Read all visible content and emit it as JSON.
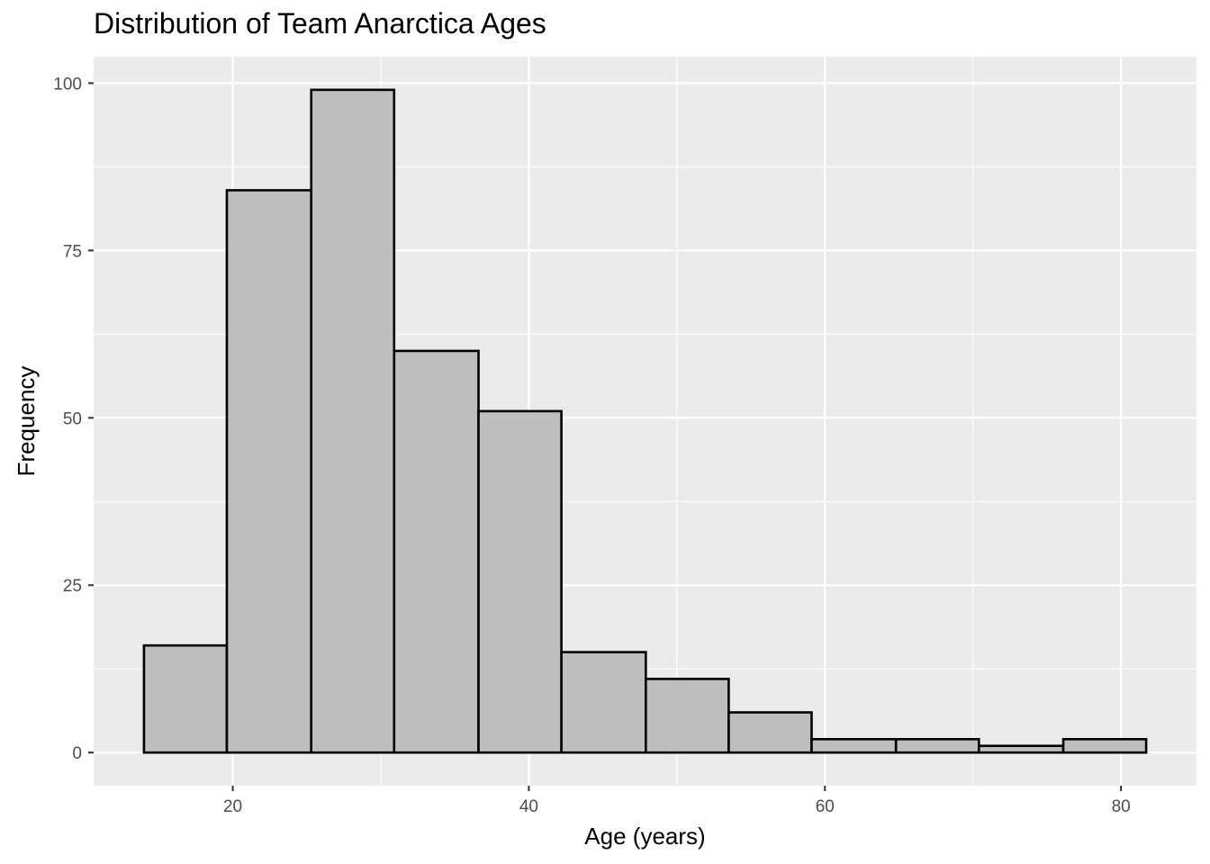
{
  "chart_data": {
    "type": "bar",
    "title": "Distribution of Team Anarctica Ages",
    "xlabel": "Age (years)",
    "ylabel": "Frequency",
    "bins": [
      {
        "x0": 14.0,
        "x1": 19.6,
        "count": 16
      },
      {
        "x0": 19.6,
        "x1": 25.3,
        "count": 84
      },
      {
        "x0": 25.3,
        "x1": 30.9,
        "count": 99
      },
      {
        "x0": 30.9,
        "x1": 36.6,
        "count": 60
      },
      {
        "x0": 36.6,
        "x1": 42.2,
        "count": 51
      },
      {
        "x0": 42.2,
        "x1": 47.9,
        "count": 15
      },
      {
        "x0": 47.9,
        "x1": 53.5,
        "count": 11
      },
      {
        "x0": 53.5,
        "x1": 59.1,
        "count": 6
      },
      {
        "x0": 59.1,
        "x1": 64.8,
        "count": 2
      },
      {
        "x0": 64.8,
        "x1": 70.4,
        "count": 2
      },
      {
        "x0": 70.4,
        "x1": 76.1,
        "count": 1
      },
      {
        "x0": 76.1,
        "x1": 81.7,
        "count": 2
      }
    ],
    "xlim": [
      10.6,
      85.1
    ],
    "ylim": [
      -4.95,
      103.95
    ],
    "x_ticks": [
      20,
      40,
      60,
      80
    ],
    "x_tick_labels": [
      "20",
      "40",
      "60",
      "80"
    ],
    "y_ticks": [
      0,
      25,
      50,
      75,
      100
    ],
    "y_tick_labels": [
      "0",
      "25",
      "50",
      "75",
      "100"
    ],
    "grid": true,
    "legend": "none",
    "colors": {
      "panel": "#ebebeb",
      "grid": "#ffffff",
      "bar_fill": "#bebebe",
      "bar_stroke": "#000000"
    }
  }
}
